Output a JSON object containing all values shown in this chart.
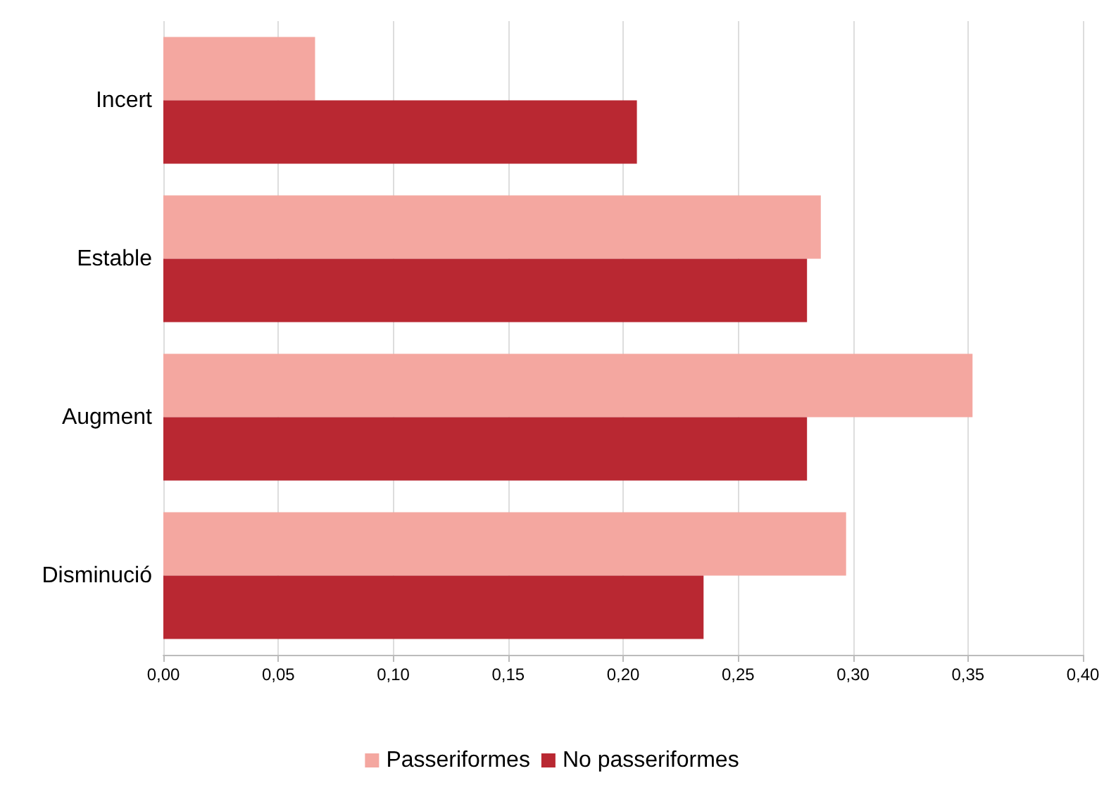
{
  "chart_data": {
    "type": "bar",
    "orientation": "horizontal",
    "categories": [
      "Incert",
      "Estable",
      "Augment",
      "Disminució"
    ],
    "series": [
      {
        "name": "Passeriformes",
        "color": "#f4a7a0",
        "values": [
          0.066,
          0.286,
          0.352,
          0.297
        ]
      },
      {
        "name": "No passeriformes",
        "color": "#b92832",
        "values": [
          0.206,
          0.28,
          0.28,
          0.235
        ]
      }
    ],
    "xlim": [
      0,
      0.4
    ],
    "xticks": [
      {
        "value": 0,
        "label": "0,00"
      },
      {
        "value": 0.05,
        "label": "0,05"
      },
      {
        "value": 0.1,
        "label": "0,10"
      },
      {
        "value": 0.15,
        "label": "0,15"
      },
      {
        "value": 0.2,
        "label": "0,20"
      },
      {
        "value": 0.25,
        "label": "0,25"
      },
      {
        "value": 0.3,
        "label": "0,30"
      },
      {
        "value": 0.35,
        "label": "0,35"
      },
      {
        "value": 0.4,
        "label": "0,40"
      }
    ],
    "grid": "x",
    "legend": "bottom"
  }
}
